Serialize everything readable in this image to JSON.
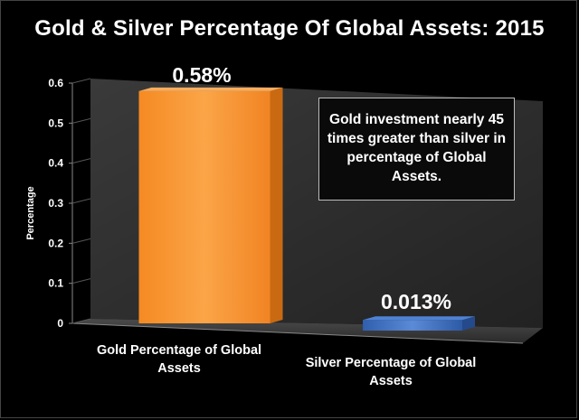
{
  "chart_data": {
    "type": "bar",
    "title": "Gold & Silver Percentage Of Global Assets: 2015",
    "ylabel": "Percentage",
    "xlabel": "",
    "categories": [
      "Gold Percentage of Global Assets",
      "Silver Percentage of Global Assets"
    ],
    "values": [
      0.58,
      0.013
    ],
    "data_labels": [
      "0.58%",
      "0.013%"
    ],
    "ylim": [
      0,
      0.6
    ],
    "yticks": [
      "0",
      "0.1",
      "0.2",
      "0.3",
      "0.4",
      "0.5",
      "0.6"
    ],
    "grid": false,
    "legend": "none",
    "annotation": "Gold investment nearly 45 times greater than silver in percentage of Global Assets.",
    "colors": {
      "background": "#000000",
      "gold_bar": "#F7922C",
      "silver_bar": "#3F74C6",
      "wall": "#2e2e2e",
      "floor": "#3a3a3a"
    }
  }
}
